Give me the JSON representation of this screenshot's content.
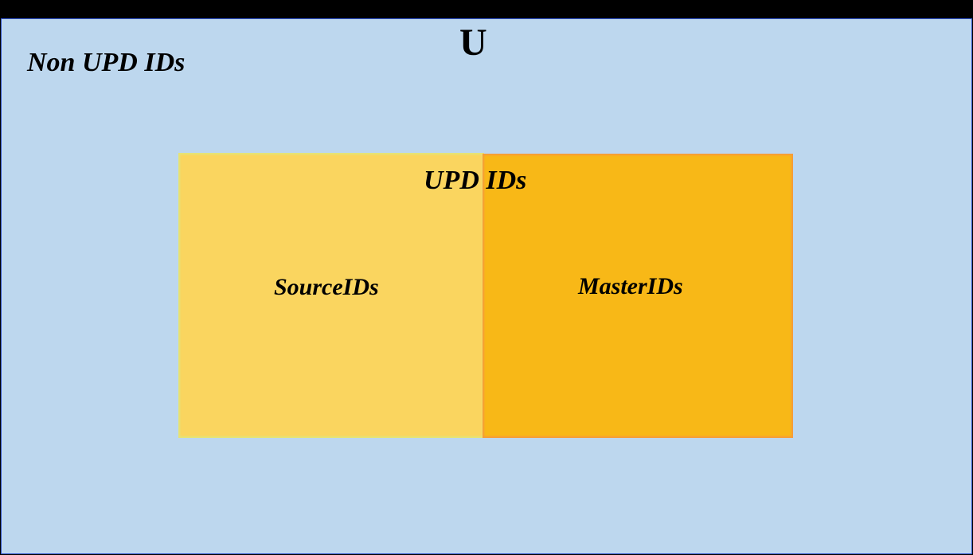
{
  "diagram": {
    "universe_label": "U",
    "non_upd_label": "Non UPD IDs",
    "upd_label": "UPD IDs",
    "source_label": "SourceIDs",
    "master_label": "MasterIDs"
  },
  "colors": {
    "universe_fill": "#bdd7ee",
    "universe_border": "#2f52c8",
    "source_fill": "#fad55f",
    "master_fill": "#f8b817"
  }
}
